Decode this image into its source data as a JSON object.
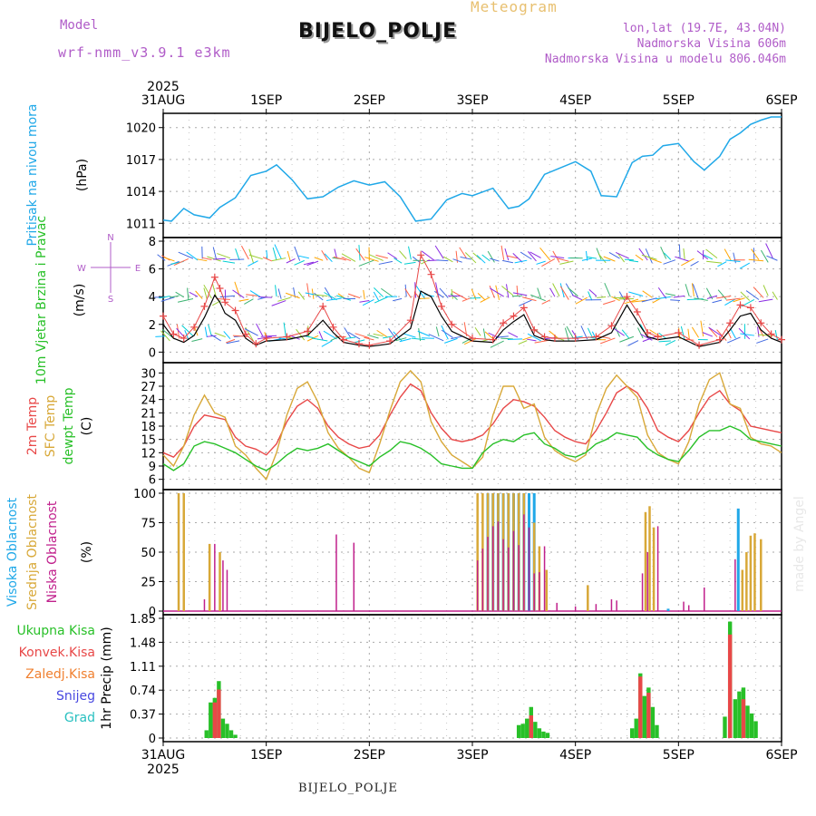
{
  "header": {
    "model_label": "Model",
    "model_name": "wrf-nmm_v3.9.1 e3km",
    "station_title": "BIJELO_POLJE",
    "product": "Meteogram",
    "coords": "lon,lat (19.7E, 43.04N)",
    "elevation": "Nadmorska Visina 606m",
    "model_elevation": "Nadmorska Visina u modelu 806.046m"
  },
  "footer": {
    "station": "BIJELO_POLJE"
  },
  "watermark": "made by Angel",
  "colors": {
    "pressure": "#20a8e8",
    "wind_label": "#28c028",
    "temp2m": "#e84848",
    "sfc": "#d8a838",
    "dewpt": "#28c028",
    "high_cloud": "#20a8e8",
    "mid_cloud": "#d8a838",
    "low_cloud": "#c0208c",
    "total_rain": "#28c028",
    "conv_rain": "#e84848",
    "freezing": "#f08030",
    "snow": "#4848e0",
    "hail": "#28c0c0",
    "purple": "#b05cc8"
  },
  "chart_data": [
    {
      "type": "line",
      "name": "pressure",
      "ylabel": "Pritisak na nivou mora",
      "unit": "(hPa)",
      "ylim": [
        1010,
        1021
      ],
      "yticks": [
        1011,
        1014,
        1017,
        1020
      ],
      "x_start": "31AUG 2025",
      "x_days": 6,
      "x": [
        0,
        0.08,
        0.2,
        0.3,
        0.45,
        0.55,
        0.7,
        0.85,
        1.0,
        1.1,
        1.25,
        1.4,
        1.55,
        1.7,
        1.85,
        2.0,
        2.15,
        2.3,
        2.45,
        2.6,
        2.75,
        2.9,
        3.0,
        3.2,
        3.35,
        3.45,
        3.55,
        3.7,
        3.85,
        4.0,
        4.15,
        4.25,
        4.4,
        4.55,
        4.65,
        4.75,
        4.85,
        5.0,
        5.15,
        5.25,
        5.4,
        5.5,
        5.6,
        5.7,
        5.8,
        5.9,
        6.0
      ],
      "series": [
        {
          "name": "Pritisak",
          "values": [
            1011.3,
            1011.2,
            1012.4,
            1011.8,
            1011.5,
            1012.5,
            1013.4,
            1015.5,
            1015.9,
            1016.5,
            1015.1,
            1013.3,
            1013.5,
            1014.4,
            1015.0,
            1014.6,
            1014.9,
            1013.5,
            1011.2,
            1011.4,
            1013.2,
            1013.8,
            1013.6,
            1014.3,
            1012.4,
            1012.6,
            1013.3,
            1015.6,
            1016.2,
            1016.8,
            1015.9,
            1013.6,
            1013.5,
            1016.7,
            1017.3,
            1017.4,
            1018.3,
            1018.5,
            1016.8,
            1016.0,
            1017.3,
            1018.9,
            1019.5,
            1020.3,
            1020.7,
            1021.0,
            1021.0
          ]
        }
      ]
    },
    {
      "type": "line",
      "name": "wind",
      "ylabel": "10m Vjetar Brzina i Pravac",
      "unit": "(m/s)",
      "ylim": [
        -0.5,
        8
      ],
      "yticks": [
        0,
        2,
        4,
        6,
        8
      ],
      "compass": "N E S W",
      "x": [
        0,
        0.1,
        0.2,
        0.3,
        0.4,
        0.5,
        0.55,
        0.6,
        0.7,
        0.8,
        0.9,
        1.0,
        1.2,
        1.4,
        1.55,
        1.65,
        1.75,
        1.9,
        2.0,
        2.2,
        2.4,
        2.5,
        2.6,
        2.7,
        2.8,
        3.0,
        3.2,
        3.3,
        3.4,
        3.5,
        3.6,
        3.7,
        3.8,
        4.0,
        4.2,
        4.35,
        4.5,
        4.6,
        4.7,
        4.8,
        5.0,
        5.2,
        5.4,
        5.5,
        5.6,
        5.7,
        5.8,
        5.9,
        6.0
      ],
      "series": [
        {
          "name": "Brzina",
          "values": [
            2.0,
            1.0,
            0.7,
            1.2,
            2.5,
            4.1,
            3.6,
            2.8,
            2.3,
            1.0,
            0.5,
            0.8,
            0.9,
            1.2,
            2.3,
            1.4,
            0.7,
            0.5,
            0.4,
            0.6,
            1.7,
            4.4,
            4.0,
            2.6,
            1.5,
            0.8,
            0.7,
            1.6,
            2.2,
            2.7,
            1.2,
            0.9,
            0.8,
            0.8,
            0.9,
            1.4,
            3.4,
            2.2,
            1.1,
            0.9,
            1.1,
            0.4,
            0.7,
            1.6,
            2.6,
            2.8,
            1.6,
            1.0,
            0.7
          ]
        },
        {
          "name": "Udari",
          "values": [
            2.6,
            1.3,
            1.0,
            1.8,
            3.3,
            5.4,
            4.6,
            3.6,
            3.0,
            1.3,
            0.6,
            1.0,
            1.1,
            1.5,
            3.3,
            1.8,
            0.9,
            0.6,
            0.5,
            0.8,
            2.3,
            7.0,
            5.6,
            3.3,
            2.0,
            1.0,
            0.9,
            2.1,
            2.6,
            3.2,
            1.6,
            1.1,
            1.0,
            1.0,
            1.1,
            1.9,
            4.0,
            2.9,
            1.4,
            1.1,
            1.4,
            0.5,
            0.9,
            2.1,
            3.4,
            3.2,
            2.1,
            1.3,
            0.9
          ]
        }
      ]
    },
    {
      "type": "line",
      "name": "temperature",
      "ylabel": "2m Temp SFC Temp dewpt Temp",
      "unit": "(C)",
      "ylim": [
        4.5,
        31.5
      ],
      "yticks": [
        6,
        9,
        12,
        15,
        18,
        21,
        24,
        27,
        30
      ],
      "x": [
        0,
        0.1,
        0.2,
        0.3,
        0.4,
        0.5,
        0.6,
        0.7,
        0.8,
        0.9,
        1.0,
        1.1,
        1.2,
        1.3,
        1.4,
        1.5,
        1.6,
        1.7,
        1.8,
        1.9,
        2.0,
        2.1,
        2.2,
        2.3,
        2.4,
        2.5,
        2.6,
        2.7,
        2.8,
        2.9,
        3.0,
        3.1,
        3.2,
        3.3,
        3.4,
        3.5,
        3.6,
        3.7,
        3.8,
        3.9,
        4.0,
        4.1,
        4.2,
        4.3,
        4.4,
        4.5,
        4.6,
        4.7,
        4.8,
        4.9,
        5.0,
        5.1,
        5.2,
        5.3,
        5.4,
        5.5,
        5.6,
        5.7,
        5.8,
        5.9,
        6.0
      ],
      "series": [
        {
          "name": "2m Temp",
          "values": [
            12.0,
            11.0,
            13.5,
            18.0,
            20.5,
            20.0,
            19.5,
            15.5,
            13.5,
            12.8,
            11.5,
            14.0,
            19.0,
            22.5,
            24.0,
            22.0,
            18.0,
            15.5,
            14.0,
            13.0,
            13.5,
            16.0,
            20.5,
            24.5,
            27.5,
            26.0,
            21.0,
            17.5,
            15.0,
            14.5,
            15.0,
            16.0,
            18.5,
            22.0,
            24.0,
            23.5,
            22.5,
            20.0,
            17.0,
            15.5,
            14.5,
            14.0,
            17.0,
            21.0,
            25.5,
            27.0,
            25.5,
            22.0,
            17.0,
            15.5,
            14.5,
            17.0,
            21.0,
            24.5,
            26.0,
            23.0,
            21.5,
            18.0,
            17.5,
            17.0,
            16.5
          ]
        },
        {
          "name": "SFC Temp",
          "values": [
            11.5,
            9.0,
            13.5,
            20.5,
            25.0,
            21.0,
            20.0,
            13.5,
            11.5,
            8.5,
            6.0,
            12.0,
            20.5,
            26.5,
            28.0,
            23.5,
            16.5,
            13.0,
            11.0,
            8.5,
            7.5,
            14.0,
            21.5,
            28.0,
            30.5,
            28.0,
            19.0,
            14.5,
            11.5,
            10.0,
            8.5,
            11.0,
            20.5,
            27.0,
            27.0,
            22.0,
            23.0,
            15.5,
            12.5,
            11.0,
            10.0,
            11.5,
            20.5,
            26.5,
            29.5,
            27.0,
            24.5,
            16.0,
            12.0,
            10.5,
            9.5,
            14.5,
            23.0,
            28.5,
            30.0,
            23.0,
            22.0,
            15.5,
            14.0,
            13.5,
            12.0
          ]
        },
        {
          "name": "dewpt Temp",
          "values": [
            9.5,
            8.0,
            9.5,
            13.5,
            14.5,
            14.0,
            13.0,
            12.0,
            10.5,
            9.0,
            8.0,
            9.5,
            11.5,
            13.0,
            12.5,
            13.0,
            14.0,
            12.5,
            11.0,
            10.0,
            9.0,
            11.0,
            12.5,
            14.5,
            14.0,
            13.0,
            11.5,
            9.5,
            9.0,
            8.5,
            8.5,
            12.0,
            14.0,
            15.0,
            14.5,
            16.0,
            16.5,
            14.0,
            13.0,
            11.5,
            11.0,
            12.0,
            14.0,
            15.0,
            16.5,
            16.0,
            15.5,
            13.0,
            11.5,
            10.5,
            10.0,
            12.5,
            15.5,
            17.0,
            17.0,
            18.0,
            17.0,
            15.0,
            14.5,
            14.0,
            13.5
          ]
        }
      ]
    },
    {
      "type": "bar",
      "name": "cloud_cover",
      "ylabel": "Visoka Oblacnost Srednja Oblacnost Niska Oblacnost",
      "unit": "(%)",
      "ylim": [
        0,
        100
      ],
      "yticks": [
        0,
        25,
        50,
        75,
        100
      ],
      "series": [
        {
          "name": "Visoka Oblacnost",
          "x": [
            3.15,
            3.2,
            3.25,
            3.3,
            3.35,
            3.4,
            3.45,
            3.5,
            3.55,
            3.6,
            4.9,
            5.58
          ],
          "values": [
            100,
            100,
            100,
            100,
            100,
            100,
            100,
            100,
            100,
            100,
            2,
            87
          ]
        },
        {
          "name": "Srednja Oblacnost",
          "x": [
            0.15,
            0.2,
            0.45,
            0.55,
            3.05,
            3.1,
            3.15,
            3.2,
            3.25,
            3.3,
            3.35,
            3.4,
            3.45,
            3.5,
            3.6,
            3.65,
            3.72,
            4.12,
            4.68,
            4.72,
            4.76,
            5.62,
            5.66,
            5.7,
            5.74,
            5.8
          ],
          "values": [
            100,
            100,
            57,
            50,
            100,
            100,
            100,
            100,
            100,
            100,
            100,
            100,
            100,
            100,
            75,
            55,
            35,
            22,
            84,
            89,
            71,
            35,
            50,
            64,
            66,
            61
          ]
        },
        {
          "name": "Niska Oblacnost",
          "x": [
            0.4,
            0.5,
            0.58,
            0.62,
            1.68,
            1.85,
            3.05,
            3.1,
            3.15,
            3.2,
            3.25,
            3.3,
            3.35,
            3.4,
            3.45,
            3.5,
            3.55,
            3.6,
            3.65,
            3.7,
            3.82,
            4.0,
            4.2,
            4.35,
            4.4,
            4.65,
            4.7,
            4.8,
            5.05,
            5.1,
            5.25,
            5.55
          ],
          "values": [
            10,
            57,
            43,
            35,
            65,
            58,
            43,
            53,
            63,
            72,
            76,
            61,
            54,
            68,
            56,
            82,
            71,
            32,
            33,
            55,
            7,
            4,
            6,
            10,
            9,
            32,
            50,
            72,
            8,
            5,
            20,
            44
          ]
        }
      ]
    },
    {
      "type": "bar",
      "name": "precipitation",
      "ylabel": "1hr Precip (mm)",
      "ylim": [
        0,
        1.85
      ],
      "yticks": [
        0,
        0.37,
        0.74,
        1.11,
        1.48,
        1.85
      ],
      "ytick_labels": [
        "0",
        "0.37",
        "0.74",
        "1.11",
        "1.48",
        "1.85"
      ],
      "legend": [
        "Ukupna Kisa",
        "Konvek.Kisa",
        "Zaledj.Kisa",
        "Snijeg",
        "Grad"
      ],
      "x_labels": [
        "31AUG",
        "1SEP",
        "2SEP",
        "3SEP",
        "4SEP",
        "5SEP",
        "6SEP"
      ],
      "x_year": "2025",
      "series": [
        {
          "name": "Ukupna Kisa",
          "x": [
            0.42,
            0.46,
            0.5,
            0.54,
            0.58,
            0.62,
            0.66,
            0.7,
            3.45,
            3.49,
            3.53,
            3.57,
            3.61,
            3.65,
            3.69,
            3.73,
            4.55,
            4.59,
            4.63,
            4.67,
            4.71,
            4.75,
            4.79,
            5.45,
            5.5,
            5.55,
            5.59,
            5.63,
            5.67,
            5.71,
            5.75
          ],
          "values": [
            0.12,
            0.55,
            0.62,
            0.88,
            0.3,
            0.22,
            0.12,
            0.05,
            0.2,
            0.22,
            0.3,
            0.48,
            0.25,
            0.15,
            0.1,
            0.08,
            0.15,
            0.3,
            1.0,
            0.65,
            0.78,
            0.48,
            0.2,
            0.33,
            1.8,
            0.6,
            0.72,
            0.78,
            0.5,
            0.38,
            0.26
          ]
        },
        {
          "name": "Konvek.Kisa",
          "x": [
            0.5,
            0.54,
            3.57,
            4.63,
            4.71,
            5.5,
            5.63
          ],
          "values": [
            0.55,
            0.75,
            0.35,
            0.95,
            0.7,
            1.6,
            0.6
          ]
        }
      ]
    }
  ]
}
